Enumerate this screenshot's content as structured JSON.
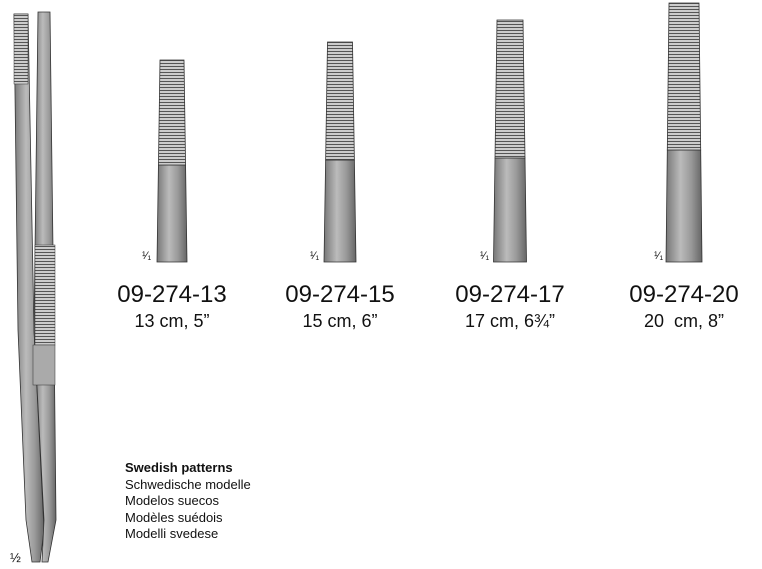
{
  "overview": {
    "scale": "½"
  },
  "items": [
    {
      "scale": "¹⁄₁",
      "code": "09-274-13",
      "size": "13 cm, 5”"
    },
    {
      "scale": "¹⁄₁",
      "code": "09-274-15",
      "size": "15 cm, 6”"
    },
    {
      "scale": "¹⁄₁",
      "code": "09-274-17",
      "size": "17 cm, 6¾”"
    },
    {
      "scale": "¹⁄₁",
      "code": "09-274-20",
      "size": "20  cm, 8”"
    }
  ],
  "description": {
    "title": "Swedish patterns",
    "translations": [
      "Schwedische modelle",
      "Modelos suecos",
      "Modèles suédois",
      "Modelli svedese"
    ]
  }
}
